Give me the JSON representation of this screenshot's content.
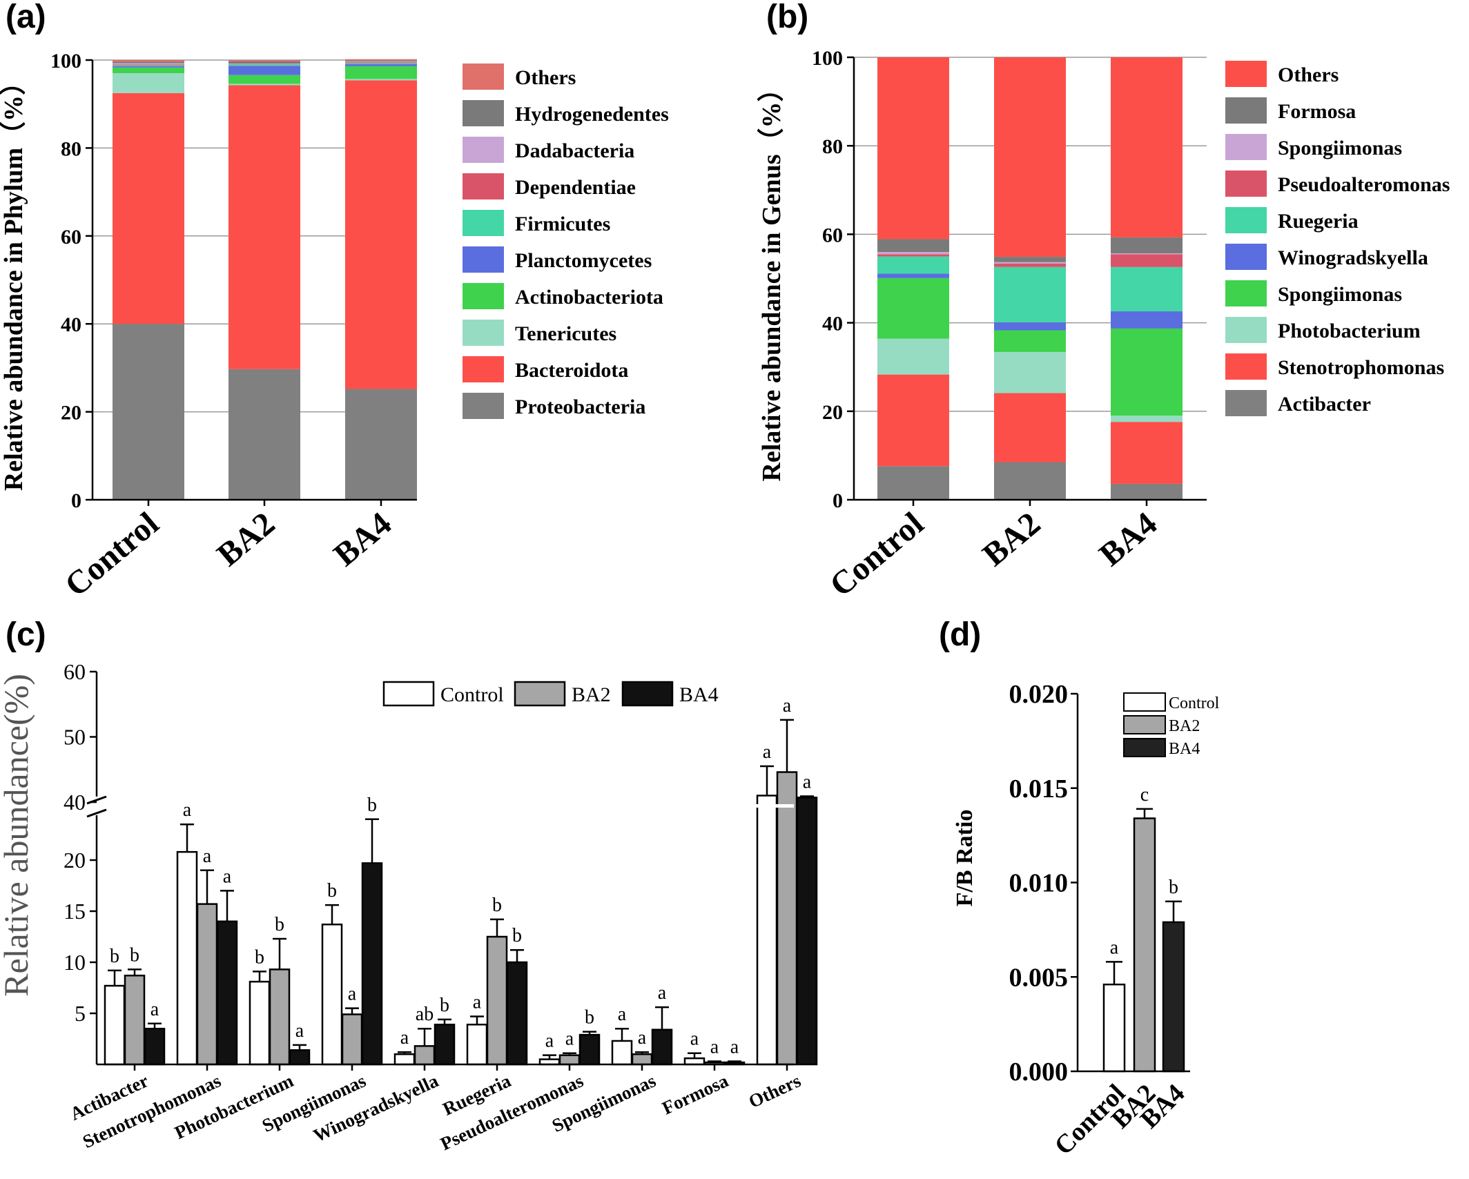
{
  "chart_data": [
    {
      "panel": "(a)",
      "type": "bar",
      "stacked": true,
      "ylabel": "Relative abundance in Phylum（%）",
      "xlabel": "",
      "ylim": [
        0,
        100
      ],
      "yticks": [
        0,
        20,
        40,
        60,
        80,
        100
      ],
      "grid": true,
      "legend_position": "right",
      "categories": [
        "Control",
        "BA2",
        "BA4"
      ],
      "series": [
        {
          "name": "Proteobacteria",
          "color": "#808080",
          "values": [
            40.0,
            29.7,
            25.2
          ]
        },
        {
          "name": "Bacteroidota",
          "color": "#fc4f4a",
          "values": [
            52.5,
            64.6,
            70.2
          ]
        },
        {
          "name": "Tenericutes",
          "color": "#96dcc3",
          "values": [
            4.5,
            0.3,
            0.3
          ]
        },
        {
          "name": "Actinobacteriota",
          "color": "#3fd24c",
          "values": [
            1.3,
            2.0,
            2.9
          ]
        },
        {
          "name": "Planctomycetes",
          "color": "#5a6ee0",
          "values": [
            0.3,
            2.1,
            0.5
          ]
        },
        {
          "name": "Firmicutes",
          "color": "#44d6a6",
          "values": [
            0.2,
            0.3,
            0.2
          ]
        },
        {
          "name": "Dependentiae",
          "color": "#d95468",
          "values": [
            0.2,
            0.1,
            0.2
          ]
        },
        {
          "name": "Dadabacteria",
          "color": "#c9a5d6",
          "values": [
            0.3,
            0.1,
            0.2
          ]
        },
        {
          "name": "Hydrogenedentes",
          "color": "#7a7a7a",
          "values": [
            0.3,
            0.5,
            0.2
          ]
        },
        {
          "name": "Others",
          "color": "#e0706a",
          "values": [
            0.4,
            0.3,
            0.3
          ]
        }
      ]
    },
    {
      "panel": "(b)",
      "type": "bar",
      "stacked": true,
      "ylabel": "Relative abundance in Genus（%）",
      "xlabel": "",
      "ylim": [
        0,
        100
      ],
      "yticks": [
        0,
        20,
        40,
        60,
        80,
        100
      ],
      "grid": true,
      "legend_position": "right",
      "categories": [
        "Control",
        "BA2",
        "BA4"
      ],
      "series": [
        {
          "name": "Actibacter",
          "color": "#808080",
          "values": [
            7.6,
            8.5,
            3.6
          ]
        },
        {
          "name": "Stenotrophomonas",
          "color": "#fc4f4a",
          "values": [
            20.7,
            15.6,
            14.0
          ]
        },
        {
          "name": "Photobacterium",
          "color": "#96dcc3",
          "values": [
            8.1,
            9.3,
            1.4
          ]
        },
        {
          "name": "Spongiimonas",
          "color": "#3fd24c",
          "values": [
            13.7,
            4.9,
            19.7
          ]
        },
        {
          "name": "Winogradskyella",
          "color": "#5a6ee0",
          "values": [
            1.0,
            1.8,
            3.9
          ]
        },
        {
          "name": "Ruegeria",
          "color": "#44d6a6",
          "values": [
            3.9,
            12.5,
            10.0
          ]
        },
        {
          "name": "Pseudoalteromonas",
          "color": "#d95468",
          "values": [
            0.5,
            0.8,
            2.9
          ]
        },
        {
          "name": "Spongiimonas",
          "color": "#c9a5d6",
          "values": [
            0.5,
            0.3,
            0.2
          ]
        },
        {
          "name": "Formosa",
          "color": "#7a7a7a",
          "values": [
            2.9,
            1.2,
            3.6
          ]
        },
        {
          "name": "Others",
          "color": "#fc4f4a",
          "values": [
            41.1,
            45.1,
            40.7
          ]
        }
      ]
    },
    {
      "panel": "(c)",
      "type": "bar",
      "grouped": true,
      "ylabel": "Relative abundance(%)",
      "xlabel": "",
      "ylim": [
        0,
        60
      ],
      "y_axis_break": [
        25,
        40
      ],
      "yticks_lower": [
        5,
        10,
        15,
        20
      ],
      "yticks_upper": [
        40,
        50,
        60
      ],
      "legend_position": "top-center",
      "categories": [
        "Actibacter",
        "Stenotrophomonas",
        "Photobacterium",
        "Spongiimonas",
        "Winogradskyella",
        "Ruegeria",
        "Pseudoalteromonas",
        "Spongiimonas",
        "Formosa",
        "Others"
      ],
      "series": [
        {
          "name": "Control",
          "color": "#ffffff",
          "values": [
            7.7,
            20.8,
            8.1,
            13.7,
            1.0,
            3.9,
            0.5,
            2.3,
            0.6,
            41.0
          ],
          "errors": [
            1.5,
            2.7,
            1.0,
            1.9,
            0.2,
            0.8,
            0.4,
            1.2,
            0.5,
            4.5
          ],
          "labels": [
            "b",
            "a",
            "b",
            "b",
            "a",
            "a",
            "a",
            "a",
            "a",
            "a"
          ]
        },
        {
          "name": "BA2",
          "color": "#a6a6a6",
          "values": [
            8.7,
            15.7,
            9.3,
            4.9,
            1.8,
            12.5,
            0.9,
            1.0,
            0.2,
            44.6
          ],
          "errors": [
            0.6,
            3.3,
            3.0,
            0.6,
            1.7,
            1.7,
            0.2,
            0.2,
            0.1,
            8.0
          ],
          "labels": [
            "b",
            "a",
            "b",
            "a",
            "ab",
            "b",
            "a",
            "a",
            "a",
            "a"
          ]
        },
        {
          "name": "BA4",
          "color": "#111111",
          "values": [
            3.5,
            14.0,
            1.4,
            19.7,
            3.9,
            10.0,
            2.9,
            3.4,
            0.2,
            40.7
          ],
          "errors": [
            0.5,
            3.0,
            0.5,
            4.3,
            0.5,
            1.2,
            0.3,
            2.2,
            0.1,
            0.2
          ],
          "labels": [
            "a",
            "a",
            "a",
            "b",
            "b",
            "b",
            "b",
            "a",
            "a",
            "a"
          ]
        }
      ]
    },
    {
      "panel": "(d)",
      "type": "bar",
      "ylabel": "F/B Ratio",
      "xlabel": "",
      "ylim": [
        0,
        0.02
      ],
      "yticks": [
        "0.000",
        "0.005",
        "0.010",
        "0.015",
        "0.020"
      ],
      "legend_position": "top-left",
      "categories": [
        "Control",
        "BA2",
        "BA4"
      ],
      "series": [
        {
          "name": "Control",
          "color": "#ffffff",
          "value": 0.0046,
          "error": 0.0012,
          "label": "a"
        },
        {
          "name": "BA2",
          "color": "#a6a6a6",
          "value": 0.0134,
          "error": 0.0005,
          "label": "c"
        },
        {
          "name": "BA4",
          "color": "#222222",
          "value": 0.0079,
          "error": 0.0011,
          "label": "b"
        }
      ]
    }
  ]
}
